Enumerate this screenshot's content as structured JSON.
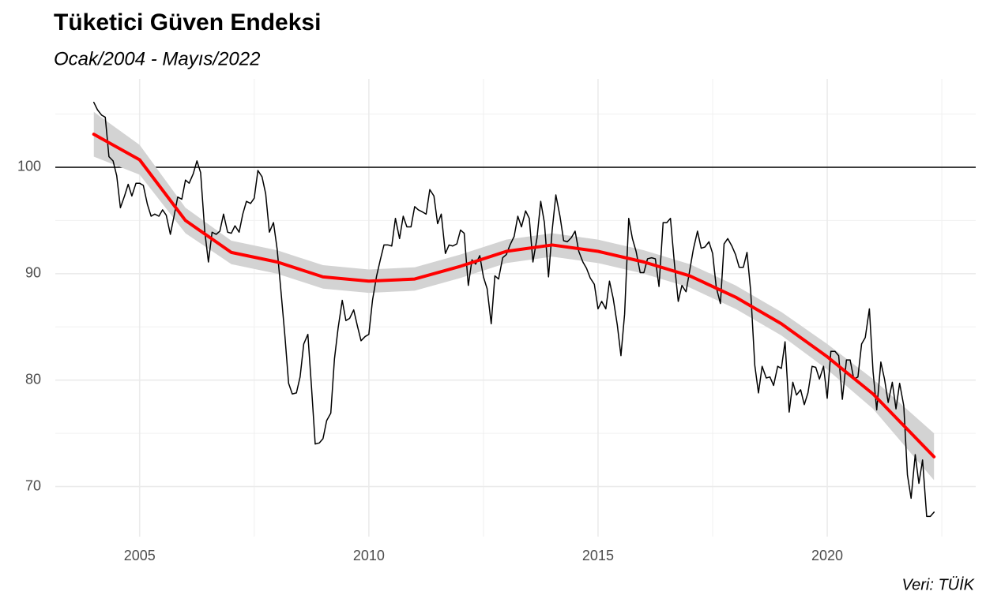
{
  "chart_data": {
    "type": "line",
    "title": "Tüketici Güven Endeksi",
    "subtitle": "Ocak/2004 - Mayıs/2022",
    "caption": "Veri: TÜİK",
    "xlim": [
      2003.16,
      2023.24
    ],
    "ylim": [
      65.3,
      108.3
    ],
    "xticks": [
      2005,
      2010,
      2015,
      2020
    ],
    "yticks": [
      70,
      80,
      90,
      100
    ],
    "minor_xticks": [
      2007.5,
      2012.5,
      2017.5,
      2022.5
    ],
    "minor_yticks": [
      75,
      85,
      95,
      105
    ],
    "grid": true,
    "hline": 100,
    "hline_color": "#000000",
    "series": [
      {
        "color": "#000000",
        "x": [
          2004,
          2004.08,
          2004.17,
          2004.25,
          2004.33,
          2004.42,
          2004.5,
          2004.58,
          2004.67,
          2004.75,
          2004.83,
          2004.92,
          2005,
          2005.08,
          2005.17,
          2005.25,
          2005.33,
          2005.42,
          2005.5,
          2005.58,
          2005.67,
          2005.75,
          2005.83,
          2005.92,
          2006,
          2006.08,
          2006.17,
          2006.25,
          2006.33,
          2006.42,
          2006.5,
          2006.58,
          2006.67,
          2006.75,
          2006.83,
          2006.92,
          2007,
          2007.08,
          2007.17,
          2007.25,
          2007.33,
          2007.42,
          2007.5,
          2007.58,
          2007.67,
          2007.75,
          2007.83,
          2007.92,
          2008,
          2008.08,
          2008.17,
          2008.25,
          2008.33,
          2008.42,
          2008.5,
          2008.58,
          2008.67,
          2008.75,
          2008.83,
          2008.92,
          2009,
          2009.08,
          2009.17,
          2009.25,
          2009.33,
          2009.42,
          2009.5,
          2009.58,
          2009.67,
          2009.75,
          2009.83,
          2009.92,
          2010,
          2010.08,
          2010.17,
          2010.25,
          2010.33,
          2010.42,
          2010.5,
          2010.58,
          2010.67,
          2010.75,
          2010.83,
          2010.92,
          2011,
          2011.08,
          2011.17,
          2011.25,
          2011.33,
          2011.42,
          2011.5,
          2011.58,
          2011.67,
          2011.75,
          2011.83,
          2011.92,
          2012,
          2012.08,
          2012.17,
          2012.25,
          2012.33,
          2012.42,
          2012.5,
          2012.58,
          2012.67,
          2012.75,
          2012.83,
          2012.92,
          2013,
          2013.08,
          2013.17,
          2013.25,
          2013.33,
          2013.42,
          2013.5,
          2013.58,
          2013.67,
          2013.75,
          2013.83,
          2013.92,
          2014,
          2014.08,
          2014.17,
          2014.25,
          2014.33,
          2014.42,
          2014.5,
          2014.58,
          2014.67,
          2014.75,
          2014.83,
          2014.92,
          2015,
          2015.08,
          2015.17,
          2015.25,
          2015.33,
          2015.42,
          2015.5,
          2015.58,
          2015.67,
          2015.75,
          2015.83,
          2015.92,
          2016,
          2016.08,
          2016.17,
          2016.25,
          2016.33,
          2016.42,
          2016.5,
          2016.58,
          2016.67,
          2016.75,
          2016.83,
          2016.92,
          2017,
          2017.08,
          2017.17,
          2017.25,
          2017.33,
          2017.42,
          2017.5,
          2017.58,
          2017.67,
          2017.75,
          2017.83,
          2017.92,
          2018,
          2018.08,
          2018.17,
          2018.25,
          2018.33,
          2018.42,
          2018.5,
          2018.58,
          2018.67,
          2018.75,
          2018.83,
          2018.92,
          2019,
          2019.08,
          2019.17,
          2019.25,
          2019.33,
          2019.42,
          2019.5,
          2019.58,
          2019.67,
          2019.75,
          2019.83,
          2019.92,
          2020,
          2020.08,
          2020.17,
          2020.25,
          2020.33,
          2020.42,
          2020.5,
          2020.58,
          2020.67,
          2020.75,
          2020.83,
          2020.92,
          2021,
          2021.08,
          2021.17,
          2021.25,
          2021.33,
          2021.42,
          2021.5,
          2021.58,
          2021.67,
          2021.75,
          2021.83,
          2021.92,
          2022,
          2022.08,
          2022.17,
          2022.25,
          2022.33
        ],
        "values": [
          106.1,
          105.4,
          104.9,
          104.7,
          101.0,
          100.6,
          99.2,
          96.2,
          97.3,
          98.4,
          97.3,
          98.5,
          98.5,
          98.3,
          96.5,
          95.4,
          95.6,
          95.4,
          96.0,
          95.5,
          93.7,
          95.4,
          97.2,
          97.0,
          98.8,
          98.5,
          99.4,
          100.6,
          99.5,
          94.0,
          91.1,
          93.9,
          93.7,
          94.0,
          95.6,
          93.9,
          93.8,
          94.5,
          93.9,
          95.6,
          96.8,
          96.6,
          97.1,
          99.7,
          99.1,
          97.5,
          93.9,
          94.8,
          92.3,
          88.5,
          84.1,
          79.7,
          78.7,
          78.8,
          80.3,
          83.4,
          84.3,
          79.3,
          74.0,
          74.1,
          74.5,
          76.2,
          76.9,
          82.0,
          84.9,
          87.5,
          85.6,
          85.8,
          86.6,
          85.1,
          83.7,
          84.1,
          84.3,
          87.5,
          89.8,
          91.3,
          92.7,
          92.7,
          92.6,
          95.2,
          93.3,
          95.4,
          94.4,
          94.4,
          96.3,
          96.0,
          95.8,
          95.6,
          97.9,
          97.3,
          94.7,
          95.6,
          91.9,
          92.7,
          92.6,
          92.8,
          94.1,
          93.8,
          88.9,
          91.3,
          90.9,
          91.7,
          89.7,
          88.6,
          85.3,
          89.8,
          89.5,
          91.5,
          91.8,
          92.7,
          93.5,
          95.4,
          94.4,
          95.9,
          95.2,
          91.1,
          93.4,
          96.8,
          94.8,
          89.7,
          94.1,
          97.4,
          95.4,
          93.1,
          93.0,
          93.4,
          94.0,
          92.1,
          91.1,
          90.5,
          89.6,
          89.0,
          86.7,
          87.4,
          86.7,
          89.3,
          87.7,
          85.2,
          82.3,
          86.2,
          95.2,
          93.3,
          92.1,
          90.1,
          90.1,
          91.4,
          91.5,
          91.4,
          88.8,
          94.8,
          94.8,
          95.2,
          90.8,
          87.4,
          88.9,
          88.3,
          90.3,
          92.3,
          94.0,
          92.4,
          92.5,
          93.0,
          91.9,
          88.7,
          87.2,
          92.8,
          93.3,
          92.6,
          91.8,
          90.6,
          90.6,
          92.0,
          88.4,
          81.4,
          78.8,
          81.3,
          80.2,
          80.3,
          79.5,
          81.3,
          81.1,
          83.6,
          77.0,
          79.8,
          78.6,
          79.1,
          77.7,
          78.8,
          81.3,
          81.2,
          80.1,
          81.3,
          78.3,
          82.7,
          82.7,
          82.3,
          78.2,
          81.9,
          81.9,
          80.1,
          80.3,
          83.4,
          84.0,
          86.7,
          80.8,
          77.2,
          81.7,
          80.1,
          77.9,
          79.8,
          77.3,
          79.7,
          77.6,
          71.1,
          68.9,
          73.0,
          70.3,
          72.5,
          67.2,
          67.2,
          67.6
        ]
      },
      {
        "color": "#ff0000",
        "band_color": "#d3d3d3",
        "x": [
          2004,
          2005,
          2006,
          2007,
          2008,
          2009,
          2010,
          2011,
          2012,
          2013,
          2014,
          2015,
          2016,
          2017,
          2018,
          2019,
          2020,
          2021,
          2022.33
        ],
        "values": [
          103.1,
          100.7,
          95.0,
          92.0,
          91.1,
          89.7,
          89.3,
          89.5,
          90.7,
          92.1,
          92.7,
          92.1,
          91.1,
          89.8,
          87.8,
          85.3,
          82.2,
          78.7,
          72.8
        ],
        "lower": [
          101.0,
          99.3,
          93.8,
          90.9,
          90.0,
          88.6,
          88.2,
          88.4,
          89.6,
          91.0,
          91.6,
          91.0,
          90.0,
          88.7,
          86.7,
          84.2,
          81.0,
          77.3,
          70.6
        ],
        "upper": [
          105.2,
          102.1,
          96.2,
          93.1,
          92.2,
          90.8,
          90.4,
          90.6,
          91.8,
          93.2,
          93.8,
          93.2,
          92.2,
          90.9,
          88.9,
          86.4,
          83.4,
          80.1,
          75.0
        ]
      }
    ]
  }
}
